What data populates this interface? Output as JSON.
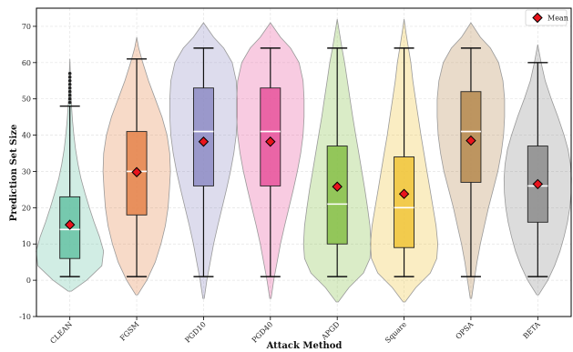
{
  "chart_data": {
    "type": "violin",
    "title": "",
    "xlabel": "Attack Method",
    "ylabel": "Prediction Set Size",
    "ylim": [
      -10,
      75
    ],
    "yticks": [
      -10,
      0,
      10,
      20,
      30,
      40,
      50,
      60,
      70
    ],
    "grid": true,
    "legend": {
      "entries": [
        "Mean"
      ],
      "position": "top-right",
      "marker": "red diamond"
    },
    "categories": [
      "CLEAN",
      "FGSM",
      "PGD10",
      "PGD40",
      "APGD",
      "Square",
      "OPSA",
      "BETA"
    ],
    "series": [
      {
        "category": "CLEAN",
        "color": "#66c2a5",
        "whisker_low": 1,
        "q1": 6,
        "median": 14,
        "q3": 23,
        "whisker_high": 48,
        "mean": 15.3,
        "outliers": [
          49,
          50,
          51,
          52,
          53,
          54,
          55,
          56,
          57
        ],
        "violin_min": -3,
        "violin_max": 61,
        "density": [
          [
            -3,
            0.05
          ],
          [
            0,
            0.5
          ],
          [
            4,
            0.95
          ],
          [
            8,
            1.0
          ],
          [
            12,
            0.88
          ],
          [
            16,
            0.72
          ],
          [
            20,
            0.58
          ],
          [
            24,
            0.45
          ],
          [
            28,
            0.33
          ],
          [
            32,
            0.24
          ],
          [
            36,
            0.17
          ],
          [
            40,
            0.12
          ],
          [
            44,
            0.08
          ],
          [
            48,
            0.05
          ],
          [
            52,
            0.03
          ],
          [
            56,
            0.02
          ],
          [
            61,
            0.0
          ]
        ]
      },
      {
        "category": "FGSM",
        "color": "#e5834a",
        "whisker_low": 1,
        "q1": 18,
        "median": 30,
        "q3": 41,
        "whisker_high": 61,
        "mean": 29.8,
        "outliers": [],
        "violin_min": -4,
        "violin_max": 67,
        "density": [
          [
            -4,
            0.03
          ],
          [
            0,
            0.3
          ],
          [
            5,
            0.55
          ],
          [
            10,
            0.72
          ],
          [
            15,
            0.85
          ],
          [
            20,
            0.93
          ],
          [
            25,
            0.97
          ],
          [
            30,
            1.0
          ],
          [
            35,
            0.98
          ],
          [
            40,
            0.9
          ],
          [
            45,
            0.75
          ],
          [
            50,
            0.55
          ],
          [
            55,
            0.35
          ],
          [
            60,
            0.18
          ],
          [
            64,
            0.06
          ],
          [
            67,
            0.0
          ]
        ]
      },
      {
        "category": "PGD10",
        "color": "#8e8cc4",
        "whisker_low": 1,
        "q1": 26,
        "median": 41,
        "q3": 53,
        "whisker_high": 64,
        "mean": 38.2,
        "outliers": [],
        "violin_min": -5,
        "violin_max": 71,
        "density": [
          [
            -5,
            0.02
          ],
          [
            0,
            0.1
          ],
          [
            5,
            0.2
          ],
          [
            10,
            0.3
          ],
          [
            15,
            0.42
          ],
          [
            20,
            0.55
          ],
          [
            25,
            0.68
          ],
          [
            30,
            0.8
          ],
          [
            35,
            0.9
          ],
          [
            40,
            0.97
          ],
          [
            45,
            1.0
          ],
          [
            50,
            1.0
          ],
          [
            55,
            0.97
          ],
          [
            60,
            0.85
          ],
          [
            64,
            0.6
          ],
          [
            67,
            0.3
          ],
          [
            71,
            0.0
          ]
        ]
      },
      {
        "category": "PGD40",
        "color": "#e7539b",
        "whisker_low": 1,
        "q1": 26,
        "median": 41,
        "q3": 53,
        "whisker_high": 64,
        "mean": 38.2,
        "outliers": [],
        "violin_min": -5,
        "violin_max": 71,
        "density": [
          [
            -5,
            0.02
          ],
          [
            0,
            0.1
          ],
          [
            5,
            0.2
          ],
          [
            10,
            0.3
          ],
          [
            15,
            0.42
          ],
          [
            20,
            0.55
          ],
          [
            25,
            0.68
          ],
          [
            30,
            0.8
          ],
          [
            35,
            0.9
          ],
          [
            40,
            0.97
          ],
          [
            45,
            1.0
          ],
          [
            50,
            1.0
          ],
          [
            55,
            0.97
          ],
          [
            60,
            0.85
          ],
          [
            64,
            0.6
          ],
          [
            67,
            0.3
          ],
          [
            71,
            0.0
          ]
        ]
      },
      {
        "category": "APGD",
        "color": "#86bf46",
        "whisker_low": 1,
        "q1": 10,
        "median": 21,
        "q3": 37,
        "whisker_high": 64,
        "mean": 25.8,
        "outliers": [],
        "violin_min": -6,
        "violin_max": 72,
        "density": [
          [
            -6,
            0.03
          ],
          [
            -2,
            0.35
          ],
          [
            2,
            0.78
          ],
          [
            6,
            0.97
          ],
          [
            10,
            1.0
          ],
          [
            15,
            0.97
          ],
          [
            20,
            0.9
          ],
          [
            25,
            0.82
          ],
          [
            30,
            0.73
          ],
          [
            35,
            0.64
          ],
          [
            40,
            0.55
          ],
          [
            45,
            0.46
          ],
          [
            50,
            0.38
          ],
          [
            55,
            0.3
          ],
          [
            60,
            0.22
          ],
          [
            64,
            0.14
          ],
          [
            68,
            0.07
          ],
          [
            72,
            0.0
          ]
        ]
      },
      {
        "category": "Square",
        "color": "#f0c438",
        "whisker_low": 1,
        "q1": 9,
        "median": 20,
        "q3": 34,
        "whisker_high": 64,
        "mean": 23.8,
        "outliers": [],
        "violin_min": -6,
        "violin_max": 72,
        "density": [
          [
            -6,
            0.03
          ],
          [
            -2,
            0.35
          ],
          [
            2,
            0.78
          ],
          [
            6,
            0.97
          ],
          [
            10,
            1.0
          ],
          [
            15,
            0.95
          ],
          [
            20,
            0.86
          ],
          [
            25,
            0.77
          ],
          [
            30,
            0.68
          ],
          [
            35,
            0.59
          ],
          [
            40,
            0.5
          ],
          [
            45,
            0.42
          ],
          [
            50,
            0.34
          ],
          [
            55,
            0.26
          ],
          [
            60,
            0.2
          ],
          [
            64,
            0.13
          ],
          [
            68,
            0.06
          ],
          [
            72,
            0.0
          ]
        ]
      },
      {
        "category": "OPSA",
        "color": "#b5884e",
        "whisker_low": 1,
        "q1": 27,
        "median": 41,
        "q3": 52,
        "whisker_high": 64,
        "mean": 38.5,
        "outliers": [],
        "violin_min": -5,
        "violin_max": 71,
        "density": [
          [
            -5,
            0.02
          ],
          [
            0,
            0.1
          ],
          [
            5,
            0.18
          ],
          [
            10,
            0.28
          ],
          [
            15,
            0.4
          ],
          [
            20,
            0.52
          ],
          [
            25,
            0.66
          ],
          [
            30,
            0.8
          ],
          [
            35,
            0.9
          ],
          [
            40,
            0.97
          ],
          [
            45,
            1.0
          ],
          [
            50,
            1.0
          ],
          [
            55,
            0.95
          ],
          [
            60,
            0.82
          ],
          [
            64,
            0.58
          ],
          [
            67,
            0.28
          ],
          [
            71,
            0.0
          ]
        ]
      },
      {
        "category": "BETA",
        "color": "#8c8c8c",
        "whisker_low": 1,
        "q1": 16,
        "median": 26,
        "q3": 37,
        "whisker_high": 60,
        "mean": 26.5,
        "outliers": [],
        "violin_min": -4,
        "violin_max": 65,
        "density": [
          [
            -4,
            0.03
          ],
          [
            0,
            0.3
          ],
          [
            4,
            0.5
          ],
          [
            8,
            0.66
          ],
          [
            12,
            0.78
          ],
          [
            16,
            0.88
          ],
          [
            20,
            0.95
          ],
          [
            24,
            0.99
          ],
          [
            28,
            1.0
          ],
          [
            32,
            0.97
          ],
          [
            36,
            0.9
          ],
          [
            40,
            0.78
          ],
          [
            45,
            0.6
          ],
          [
            50,
            0.4
          ],
          [
            55,
            0.22
          ],
          [
            60,
            0.1
          ],
          [
            65,
            0.0
          ]
        ]
      }
    ]
  }
}
